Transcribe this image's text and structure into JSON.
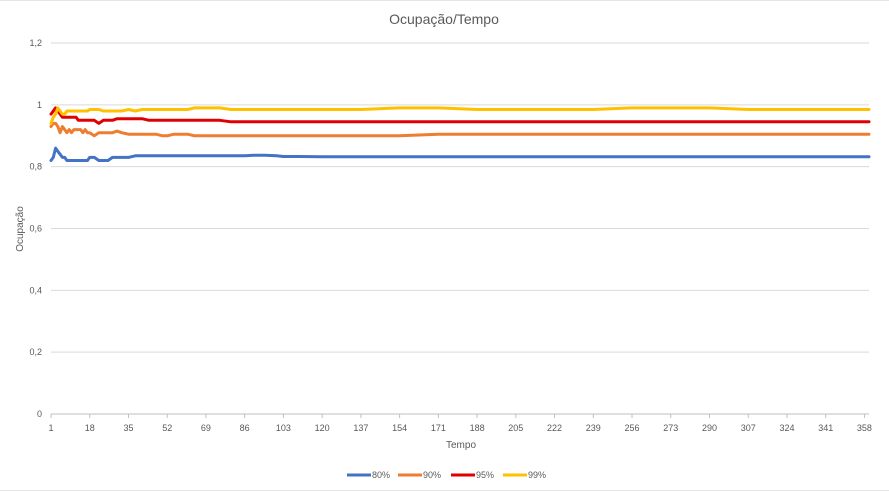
{
  "chart_data": {
    "type": "line",
    "title": "Ocupação/Tempo",
    "xlabel": "Tempo",
    "ylabel": "Ocupação",
    "ylim": [
      0,
      1.2
    ],
    "y_ticks": [
      "0",
      "0,2",
      "0,4",
      "0,6",
      "0,8",
      "1",
      "1,2"
    ],
    "xlim": [
      1,
      360
    ],
    "x_ticks": [
      "1",
      "18",
      "35",
      "52",
      "69",
      "86",
      "103",
      "120",
      "137",
      "154",
      "171",
      "188",
      "205",
      "222",
      "239",
      "256",
      "273",
      "290",
      "307",
      "324",
      "341",
      "358"
    ],
    "grid": true,
    "legend": "bottom",
    "x": [
      1,
      2,
      3,
      4,
      5,
      6,
      7,
      8,
      9,
      10,
      11,
      12,
      13,
      14,
      15,
      16,
      17,
      18,
      20,
      22,
      24,
      26,
      28,
      30,
      32,
      35,
      38,
      41,
      44,
      47,
      50,
      52,
      55,
      58,
      61,
      64,
      69,
      75,
      80,
      86,
      90,
      95,
      100,
      103,
      110,
      120,
      137,
      154,
      171,
      188,
      205,
      222,
      239,
      256,
      273,
      290,
      307,
      324,
      341,
      358,
      360
    ],
    "series": [
      {
        "name": "80%",
        "color": "#4472C4",
        "values": [
          0.82,
          0.83,
          0.86,
          0.85,
          0.84,
          0.83,
          0.83,
          0.82,
          0.82,
          0.82,
          0.82,
          0.82,
          0.82,
          0.82,
          0.82,
          0.82,
          0.82,
          0.83,
          0.83,
          0.82,
          0.82,
          0.82,
          0.83,
          0.83,
          0.83,
          0.83,
          0.835,
          0.835,
          0.835,
          0.835,
          0.835,
          0.835,
          0.835,
          0.835,
          0.835,
          0.835,
          0.835,
          0.835,
          0.835,
          0.835,
          0.837,
          0.837,
          0.835,
          0.833,
          0.833,
          0.832,
          0.832,
          0.832,
          0.832,
          0.832,
          0.832,
          0.832,
          0.832,
          0.832,
          0.832,
          0.832,
          0.832,
          0.832,
          0.832,
          0.832,
          0.832
        ]
      },
      {
        "name": "90%",
        "color": "#ED7D31",
        "values": [
          0.93,
          0.94,
          0.94,
          0.93,
          0.91,
          0.93,
          0.92,
          0.91,
          0.92,
          0.91,
          0.92,
          0.92,
          0.92,
          0.92,
          0.91,
          0.92,
          0.91,
          0.91,
          0.9,
          0.91,
          0.91,
          0.91,
          0.91,
          0.915,
          0.91,
          0.905,
          0.905,
          0.905,
          0.905,
          0.905,
          0.9,
          0.9,
          0.905,
          0.905,
          0.905,
          0.9,
          0.9,
          0.9,
          0.9,
          0.9,
          0.9,
          0.9,
          0.9,
          0.9,
          0.9,
          0.9,
          0.9,
          0.9,
          0.905,
          0.905,
          0.905,
          0.905,
          0.905,
          0.905,
          0.905,
          0.905,
          0.905,
          0.905,
          0.905,
          0.905,
          0.905
        ]
      },
      {
        "name": "95%",
        "color": "#E00000",
        "values": [
          0.97,
          0.98,
          0.99,
          0.98,
          0.97,
          0.96,
          0.96,
          0.96,
          0.96,
          0.96,
          0.96,
          0.96,
          0.95,
          0.95,
          0.95,
          0.95,
          0.95,
          0.95,
          0.95,
          0.94,
          0.95,
          0.95,
          0.95,
          0.955,
          0.955,
          0.955,
          0.955,
          0.955,
          0.95,
          0.95,
          0.95,
          0.95,
          0.95,
          0.95,
          0.95,
          0.95,
          0.95,
          0.95,
          0.945,
          0.945,
          0.945,
          0.945,
          0.945,
          0.945,
          0.945,
          0.945,
          0.945,
          0.945,
          0.945,
          0.945,
          0.945,
          0.945,
          0.945,
          0.945,
          0.945,
          0.945,
          0.945,
          0.945,
          0.945,
          0.945,
          0.945
        ]
      },
      {
        "name": "99%",
        "color": "#FFC000",
        "values": [
          0.94,
          0.96,
          0.97,
          0.99,
          0.98,
          0.97,
          0.97,
          0.98,
          0.98,
          0.98,
          0.98,
          0.98,
          0.98,
          0.98,
          0.98,
          0.98,
          0.98,
          0.985,
          0.985,
          0.985,
          0.98,
          0.98,
          0.98,
          0.98,
          0.98,
          0.985,
          0.98,
          0.985,
          0.985,
          0.985,
          0.985,
          0.985,
          0.985,
          0.985,
          0.985,
          0.99,
          0.99,
          0.99,
          0.985,
          0.985,
          0.985,
          0.985,
          0.985,
          0.985,
          0.985,
          0.985,
          0.985,
          0.99,
          0.99,
          0.985,
          0.985,
          0.985,
          0.985,
          0.99,
          0.99,
          0.99,
          0.985,
          0.985,
          0.985,
          0.985,
          0.985
        ]
      }
    ]
  }
}
